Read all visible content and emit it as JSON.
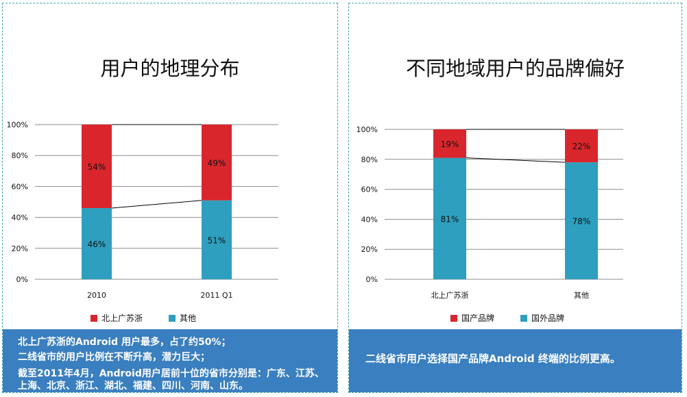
{
  "colors": {
    "red": "#d9262c",
    "teal": "#2e9fbe",
    "footer_bg": "#3a7fbf"
  },
  "left": {
    "title": "用户的地理分布",
    "legend": [
      "北上广苏浙",
      "其他"
    ],
    "footer_lines": [
      "北上广苏浙的Android 用户最多，占了约50%；",
      "二线省市的用户比例在不断升高，潜力巨大；",
      "截至2011年4月，Android用户居前十位的省市分别是：广东、江苏、上海、北京、浙江、湖北、福建、四川、河南、山东。"
    ]
  },
  "right": {
    "title": "不同地域用户的品牌偏好",
    "legend": [
      "国产品牌",
      "国外品牌"
    ],
    "footer_text": "二线省市用户选择国产品牌Android 终端的比例更高。"
  },
  "chart_data": [
    {
      "type": "bar",
      "stacked": true,
      "percent": true,
      "categories": [
        "2010",
        "2011 Q1"
      ],
      "series": [
        {
          "name": "其他",
          "values": [
            46,
            51
          ],
          "color": "#2e9fbe"
        },
        {
          "name": "北上广苏浙",
          "values": [
            54,
            49
          ],
          "color": "#d9262c"
        }
      ],
      "ylim": [
        0,
        100
      ],
      "yticks": [
        "0%",
        "20%",
        "40%",
        "60%",
        "80%",
        "100%"
      ],
      "legend_position": "bottom",
      "grid": true,
      "title": "用户的地理分布"
    },
    {
      "type": "bar",
      "stacked": true,
      "percent": true,
      "categories": [
        "北上广苏浙",
        "其他"
      ],
      "series": [
        {
          "name": "国外品牌",
          "values": [
            81,
            78
          ],
          "color": "#2e9fbe"
        },
        {
          "name": "国产品牌",
          "values": [
            19,
            22
          ],
          "color": "#d9262c"
        }
      ],
      "ylim": [
        0,
        100
      ],
      "yticks": [
        "0%",
        "20%",
        "40%",
        "60%",
        "80%",
        "100%"
      ],
      "legend_position": "bottom",
      "grid": true,
      "title": "不同地域用户的品牌偏好"
    }
  ]
}
